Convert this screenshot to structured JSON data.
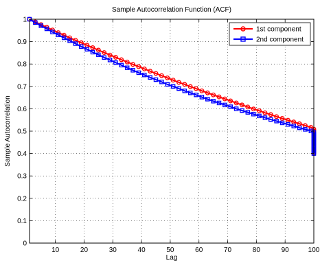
{
  "chart_data": {
    "type": "line",
    "title": "Sample Autocorrelation Function (ACF)",
    "xlabel": "Lag",
    "ylabel": "Sample Autocorrelation",
    "xlim": [
      1,
      100
    ],
    "ylim": [
      0,
      1
    ],
    "xticks": [
      10,
      20,
      30,
      40,
      50,
      60,
      70,
      80,
      90,
      100
    ],
    "yticks": [
      0,
      0.1,
      0.2,
      0.3,
      0.4,
      0.5,
      0.6,
      0.7,
      0.8,
      0.9,
      1
    ],
    "ytick_labels": [
      "0",
      "0.1",
      "0.2",
      "0.3",
      "0.4",
      "0.5",
      "0.6",
      "0.7",
      "0.8",
      "0.9",
      "1"
    ],
    "grid": true,
    "grid_style": "dotted",
    "legend_position": "top-right",
    "x_start": 1,
    "x_step": 2,
    "series": [
      {
        "name": "1st component",
        "color": "#ff0000",
        "marker": "circle",
        "values": [
          1.0,
          0.988,
          0.976,
          0.964,
          0.952,
          0.94,
          0.929,
          0.917,
          0.906,
          0.895,
          0.884,
          0.873,
          0.862,
          0.851,
          0.84,
          0.83,
          0.819,
          0.809,
          0.798,
          0.788,
          0.778,
          0.768,
          0.758,
          0.748,
          0.738,
          0.728,
          0.718,
          0.709,
          0.699,
          0.69,
          0.68,
          0.671,
          0.662,
          0.653,
          0.644,
          0.635,
          0.626,
          0.617,
          0.608,
          0.599,
          0.591,
          0.582,
          0.574,
          0.565,
          0.557,
          0.549,
          0.541,
          0.533,
          0.525,
          0.517,
          0.509,
          0.501,
          0.493,
          0.486,
          0.478,
          0.471,
          0.463,
          0.456,
          0.448,
          0.441,
          0.434,
          0.427,
          0.42,
          0.413,
          0.406,
          0.4
        ]
      },
      {
        "name": "2nd component",
        "color": "#0000ff",
        "marker": "square",
        "values": [
          1.0,
          0.985,
          0.971,
          0.957,
          0.943,
          0.93,
          0.917,
          0.904,
          0.891,
          0.878,
          0.866,
          0.853,
          0.841,
          0.829,
          0.818,
          0.806,
          0.795,
          0.783,
          0.772,
          0.761,
          0.751,
          0.74,
          0.73,
          0.72,
          0.709,
          0.7,
          0.69,
          0.68,
          0.671,
          0.662,
          0.652,
          0.643,
          0.634,
          0.626,
          0.617,
          0.609,
          0.6,
          0.592,
          0.584,
          0.576,
          0.568,
          0.56,
          0.552,
          0.545,
          0.537,
          0.53,
          0.523,
          0.515,
          0.508,
          0.501,
          0.494,
          0.488,
          0.481,
          0.474,
          0.468,
          0.461,
          0.455,
          0.449,
          0.442,
          0.436,
          0.43,
          0.424,
          0.418,
          0.412,
          0.406,
          0.4
        ]
      }
    ]
  }
}
